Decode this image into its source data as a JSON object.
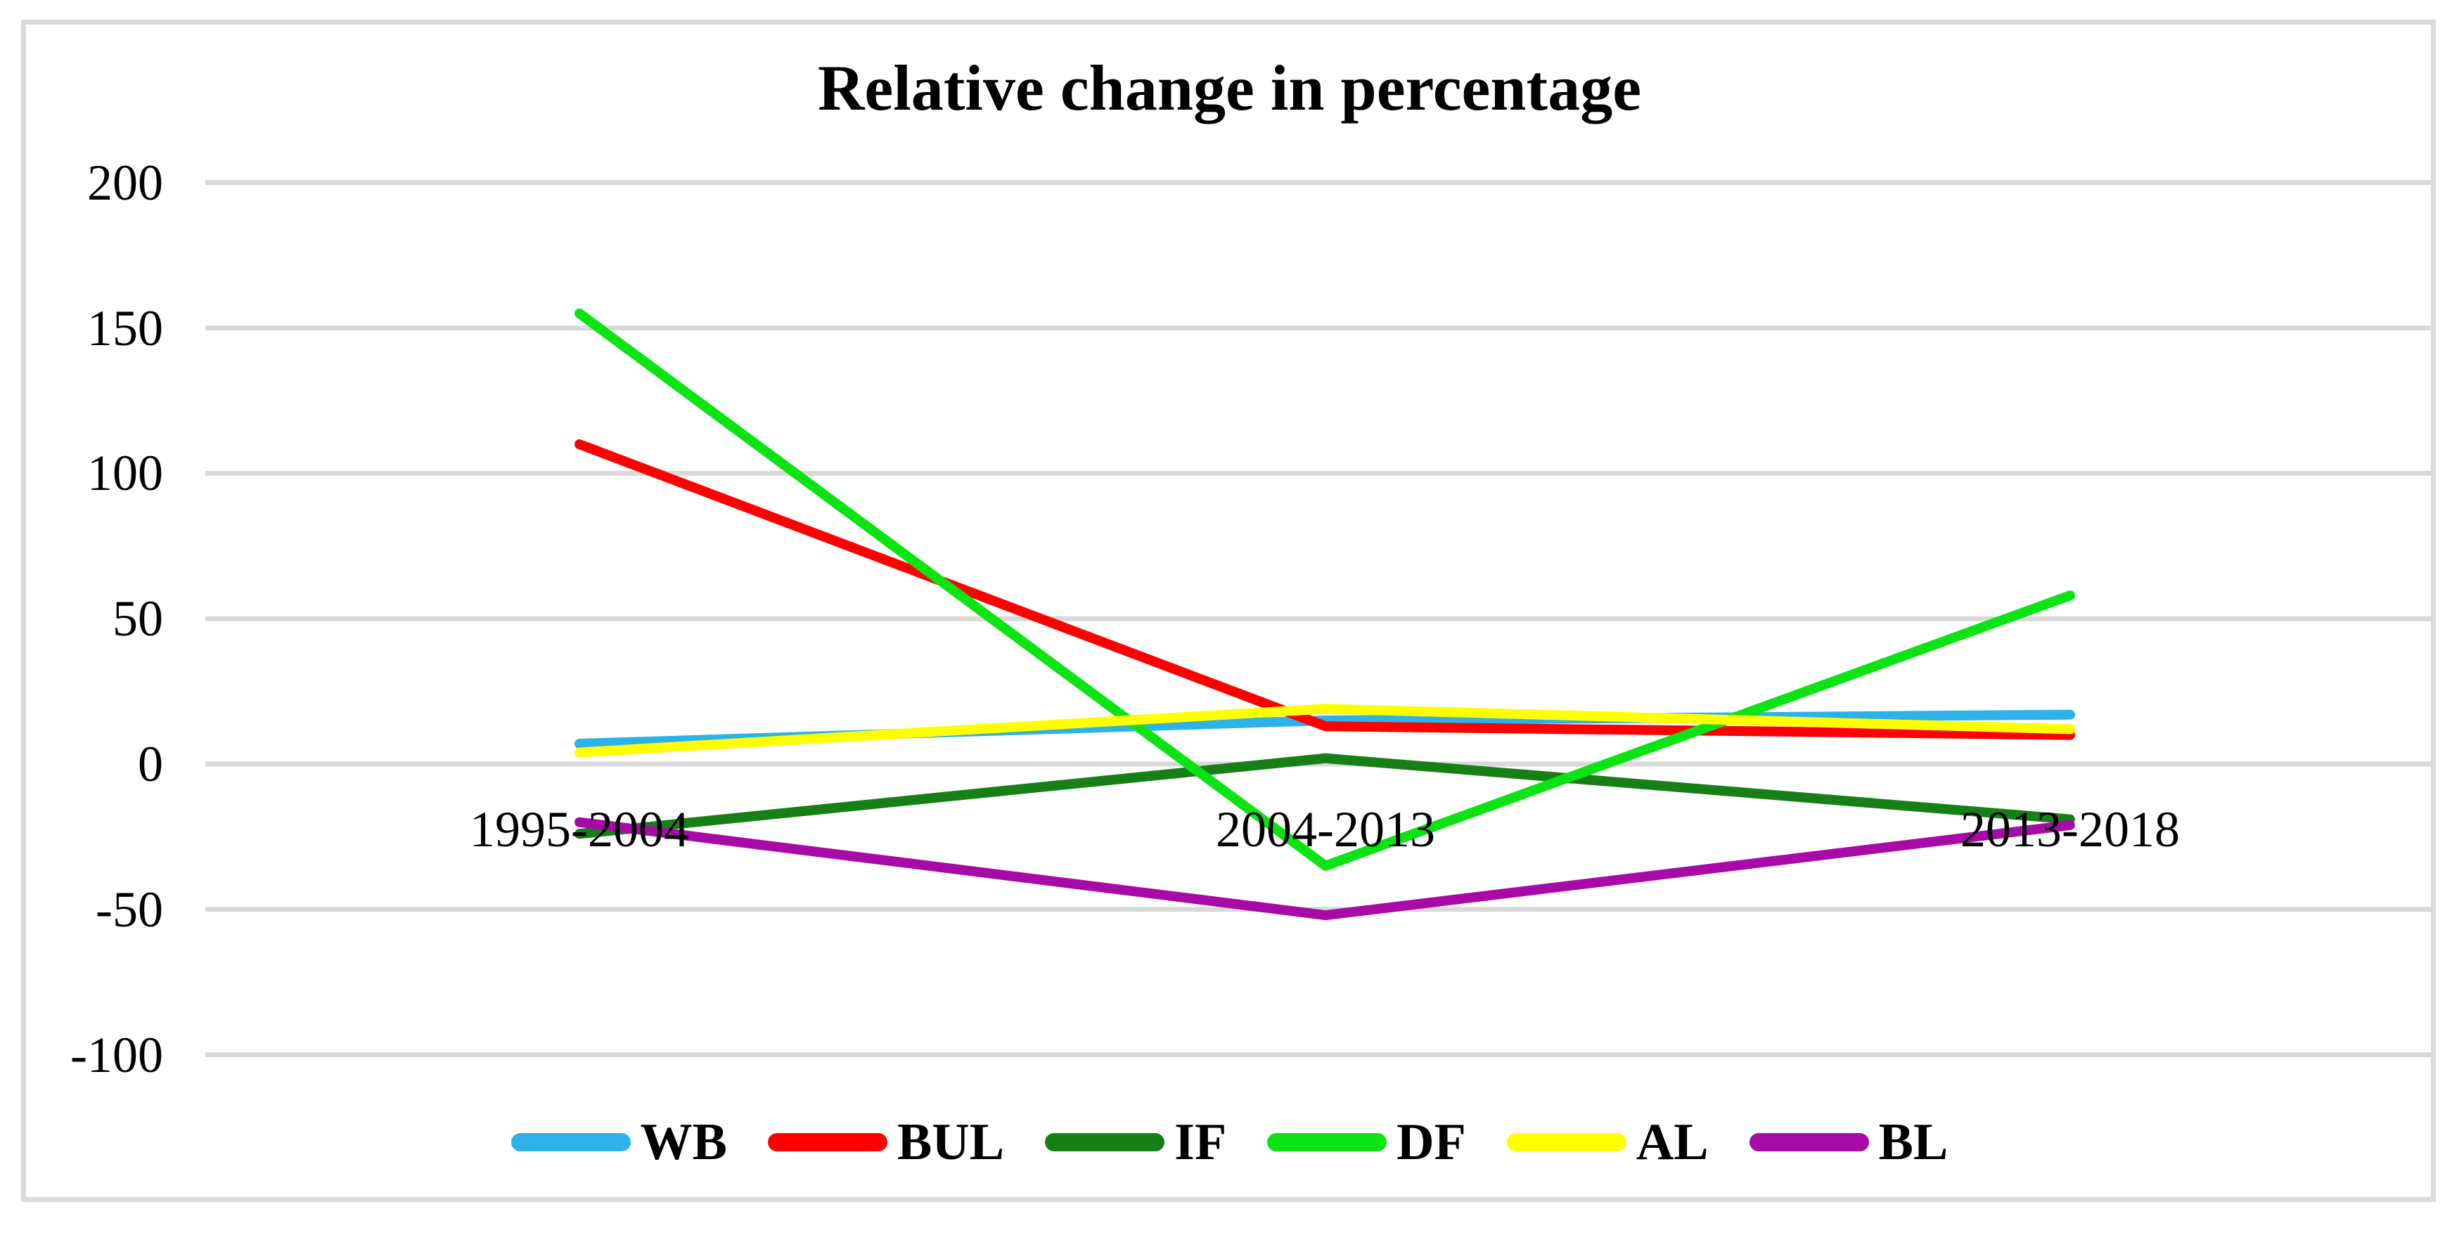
{
  "chart_data": {
    "type": "line",
    "title": "Relative change in percentage",
    "xlabel": "",
    "ylabel": "",
    "categories": [
      "1995-2004",
      "2004-2013",
      "2013-2018"
    ],
    "y_ticks": [
      200,
      150,
      100,
      50,
      0,
      -50,
      -100
    ],
    "ylim": [
      -100,
      200
    ],
    "grid": "horizontal",
    "legend_position": "bottom",
    "series": [
      {
        "name": "WB",
        "color": "#2CB1E8",
        "values": [
          7,
          15,
          17
        ]
      },
      {
        "name": "BUL",
        "color": "#FF0000",
        "values": [
          110,
          13,
          10
        ]
      },
      {
        "name": "IF",
        "color": "#168016",
        "values": [
          -24,
          2,
          -19
        ]
      },
      {
        "name": "DF",
        "color": "#0BE412",
        "values": [
          155,
          -35,
          58
        ]
      },
      {
        "name": "AL",
        "color": "#FFFF00",
        "values": [
          4,
          19,
          12
        ]
      },
      {
        "name": "BL",
        "color": "#A80AA8",
        "values": [
          -20,
          -52,
          -21
        ]
      }
    ],
    "colors": {
      "gridline": "#D9D9D9",
      "frame_border": "#DBDBDB",
      "background": "#FFFFFF",
      "text": "#000000"
    }
  }
}
